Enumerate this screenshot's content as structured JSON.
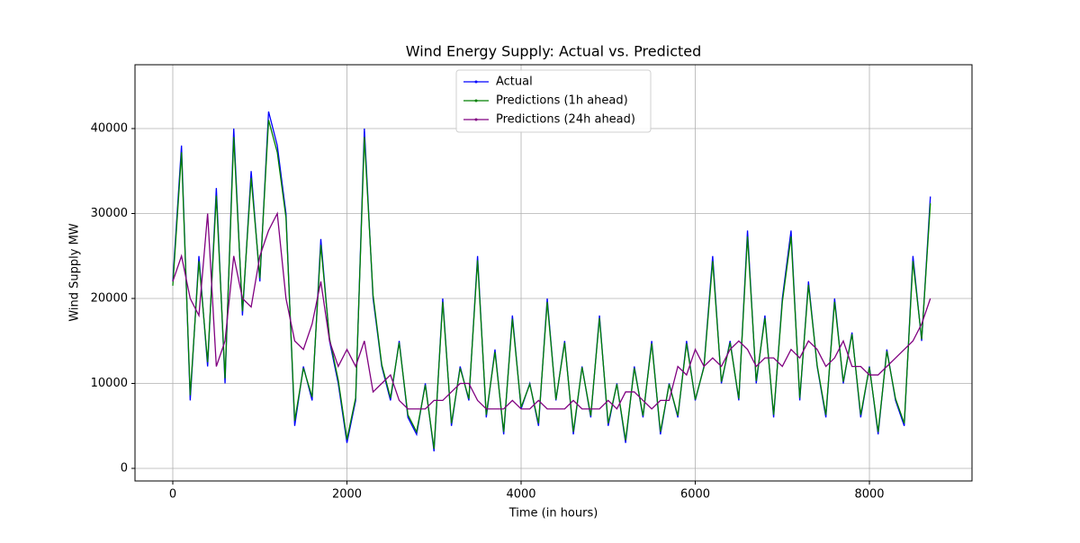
{
  "chart_data": {
    "type": "line",
    "title": "Wind Energy Supply: Actual vs. Predicted",
    "xlabel": "Time (in hours)",
    "ylabel": "Wind Supply MW",
    "x": [
      0,
      100,
      200,
      300,
      400,
      500,
      600,
      700,
      800,
      900,
      1000,
      1100,
      1200,
      1300,
      1400,
      1500,
      1600,
      1700,
      1800,
      1900,
      2000,
      2100,
      2200,
      2300,
      2400,
      2500,
      2600,
      2700,
      2800,
      2900,
      3000,
      3100,
      3200,
      3300,
      3400,
      3500,
      3600,
      3700,
      3800,
      3900,
      4000,
      4100,
      4200,
      4300,
      4400,
      4500,
      4600,
      4700,
      4800,
      4900,
      5000,
      5100,
      5200,
      5300,
      5400,
      5500,
      5600,
      5700,
      5800,
      5900,
      6000,
      6100,
      6200,
      6300,
      6400,
      6500,
      6600,
      6700,
      6800,
      6900,
      7000,
      7100,
      7200,
      7300,
      7400,
      7500,
      7600,
      7700,
      7800,
      7900,
      8000,
      8100,
      8200,
      8300,
      8400,
      8500,
      8600,
      8700
    ],
    "series": [
      {
        "name": "Actual",
        "color": "#0000ff",
        "values": [
          22000,
          38000,
          8000,
          25000,
          12000,
          33000,
          10000,
          40000,
          18000,
          35000,
          22000,
          42000,
          38000,
          30000,
          5000,
          12000,
          8000,
          27000,
          15000,
          10000,
          3000,
          8000,
          40000,
          20000,
          12000,
          8000,
          15000,
          6000,
          4000,
          10000,
          2000,
          20000,
          5000,
          12000,
          8000,
          25000,
          6000,
          14000,
          4000,
          18000,
          7000,
          10000,
          5000,
          20000,
          8000,
          15000,
          4000,
          12000,
          6000,
          18000,
          5000,
          10000,
          3000,
          12000,
          6000,
          15000,
          4000,
          10000,
          6000,
          15000,
          8000,
          12000,
          25000,
          10000,
          15000,
          8000,
          28000,
          10000,
          18000,
          6000,
          20000,
          28000,
          8000,
          22000,
          12000,
          6000,
          20000,
          10000,
          16000,
          6000,
          12000,
          4000,
          14000,
          8000,
          5000,
          25000,
          15000,
          32000
        ]
      },
      {
        "name": "Predictions (1h ahead)",
        "color": "#008000",
        "values": [
          21500,
          37200,
          8600,
          24400,
          12500,
          32100,
          10600,
          39000,
          18500,
          34200,
          22400,
          41000,
          37200,
          29500,
          5600,
          11800,
          8400,
          26300,
          15300,
          10400,
          3400,
          8300,
          39000,
          20400,
          12200,
          8300,
          14800,
          6300,
          4300,
          9800,
          2300,
          19600,
          5300,
          11800,
          8200,
          24500,
          6300,
          13700,
          4300,
          17600,
          7200,
          9900,
          5300,
          19600,
          8100,
          14800,
          4300,
          11900,
          6200,
          17700,
          5300,
          9900,
          3300,
          11800,
          6200,
          14700,
          4300,
          9900,
          6200,
          14700,
          8100,
          11900,
          24400,
          10200,
          14800,
          8200,
          27300,
          10300,
          17700,
          6300,
          19600,
          27300,
          8300,
          21600,
          12100,
          6300,
          19600,
          10200,
          15800,
          6300,
          11900,
          4300,
          13800,
          8200,
          5300,
          24400,
          15200,
          31200
        ]
      },
      {
        "name": "Predictions (24h ahead)",
        "color": "#800080",
        "values": [
          22000,
          25000,
          20000,
          18000,
          30000,
          12000,
          15000,
          25000,
          20000,
          19000,
          25000,
          28000,
          30000,
          20000,
          15000,
          14000,
          17000,
          22000,
          15000,
          12000,
          14000,
          12000,
          15000,
          9000,
          10000,
          11000,
          8000,
          7000,
          7000,
          7000,
          8000,
          8000,
          9000,
          10000,
          10000,
          8000,
          7000,
          7000,
          7000,
          8000,
          7000,
          7000,
          8000,
          7000,
          7000,
          7000,
          8000,
          7000,
          7000,
          7000,
          8000,
          7000,
          9000,
          9000,
          8000,
          7000,
          8000,
          8000,
          12000,
          11000,
          14000,
          12000,
          13000,
          12000,
          14000,
          15000,
          14000,
          12000,
          13000,
          13000,
          12000,
          14000,
          13000,
          15000,
          14000,
          12000,
          13000,
          15000,
          12000,
          12000,
          11000,
          11000,
          12000,
          13000,
          14000,
          15000,
          17000,
          20000
        ]
      }
    ],
    "xlim": [
      -434,
      9178
    ],
    "ylim": [
      -1481,
      47513
    ],
    "xticks": [
      0,
      2000,
      4000,
      6000,
      8000
    ],
    "yticks": [
      0,
      10000,
      20000,
      30000,
      40000
    ],
    "grid": true,
    "legend": "upper center"
  }
}
